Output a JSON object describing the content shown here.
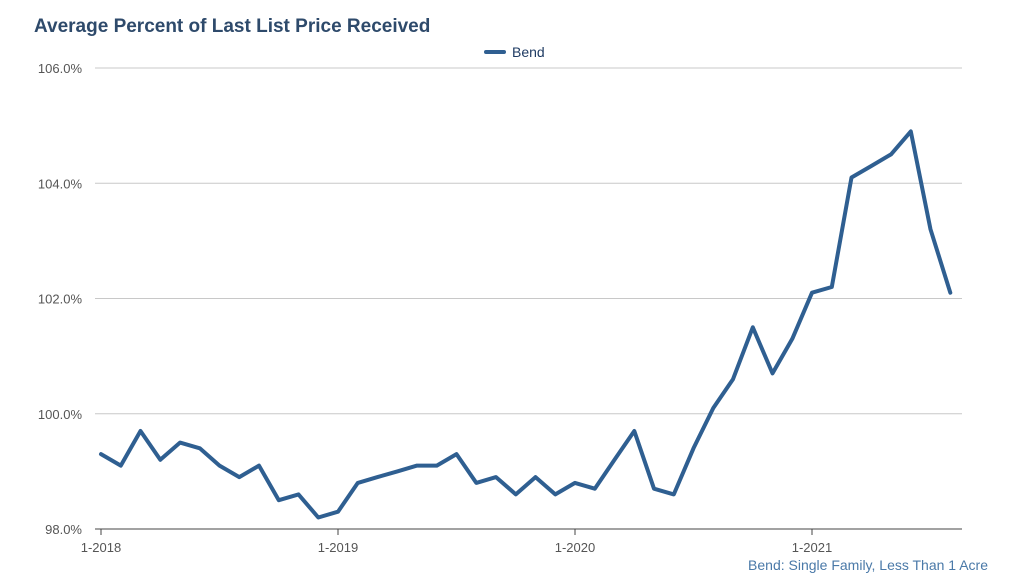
{
  "title": "Average Percent of Last List Price Received",
  "footnote": "Bend: Single Family, Less Than 1 Acre",
  "colors": {
    "line": "#2f5f91",
    "grid": "#c8c8c8",
    "title": "#2e4a6b"
  },
  "chart_data": {
    "type": "line",
    "title": "Average Percent of Last List Price Received",
    "xlabel": "",
    "ylabel": "",
    "ylim": [
      98.0,
      106.0
    ],
    "y_ticks": [
      "98.0%",
      "100.0%",
      "102.0%",
      "104.0%",
      "106.0%"
    ],
    "y_tick_values": [
      98.0,
      100.0,
      102.0,
      104.0,
      106.0
    ],
    "x_tick_labels": [
      "1-2018",
      "1-2019",
      "1-2020",
      "1-2021"
    ],
    "x_tick_indices": [
      0,
      12,
      24,
      36
    ],
    "grid": true,
    "legend_position": "top-center",
    "series": [
      {
        "name": "Bend",
        "color": "#2f5f91",
        "x": [
          "1-2018",
          "2-2018",
          "3-2018",
          "4-2018",
          "5-2018",
          "6-2018",
          "7-2018",
          "8-2018",
          "9-2018",
          "10-2018",
          "11-2018",
          "12-2018",
          "1-2019",
          "2-2019",
          "3-2019",
          "4-2019",
          "5-2019",
          "6-2019",
          "7-2019",
          "8-2019",
          "9-2019",
          "10-2019",
          "11-2019",
          "12-2019",
          "1-2020",
          "2-2020",
          "3-2020",
          "4-2020",
          "5-2020",
          "6-2020",
          "7-2020",
          "8-2020",
          "9-2020",
          "10-2020",
          "11-2020",
          "12-2020",
          "1-2021",
          "2-2021",
          "3-2021",
          "4-2021",
          "5-2021",
          "6-2021",
          "7-2021",
          "8-2021"
        ],
        "values": [
          99.3,
          99.1,
          99.7,
          99.2,
          99.5,
          99.4,
          99.1,
          98.9,
          99.1,
          98.5,
          98.6,
          98.2,
          98.3,
          98.8,
          98.9,
          99.0,
          99.1,
          99.1,
          99.3,
          98.8,
          98.9,
          98.6,
          98.9,
          98.6,
          98.8,
          98.7,
          99.2,
          99.7,
          98.7,
          98.6,
          99.4,
          100.1,
          100.6,
          101.5,
          100.7,
          101.3,
          102.1,
          102.2,
          104.1,
          104.3,
          104.5,
          104.9,
          103.2,
          102.1
        ]
      }
    ]
  }
}
